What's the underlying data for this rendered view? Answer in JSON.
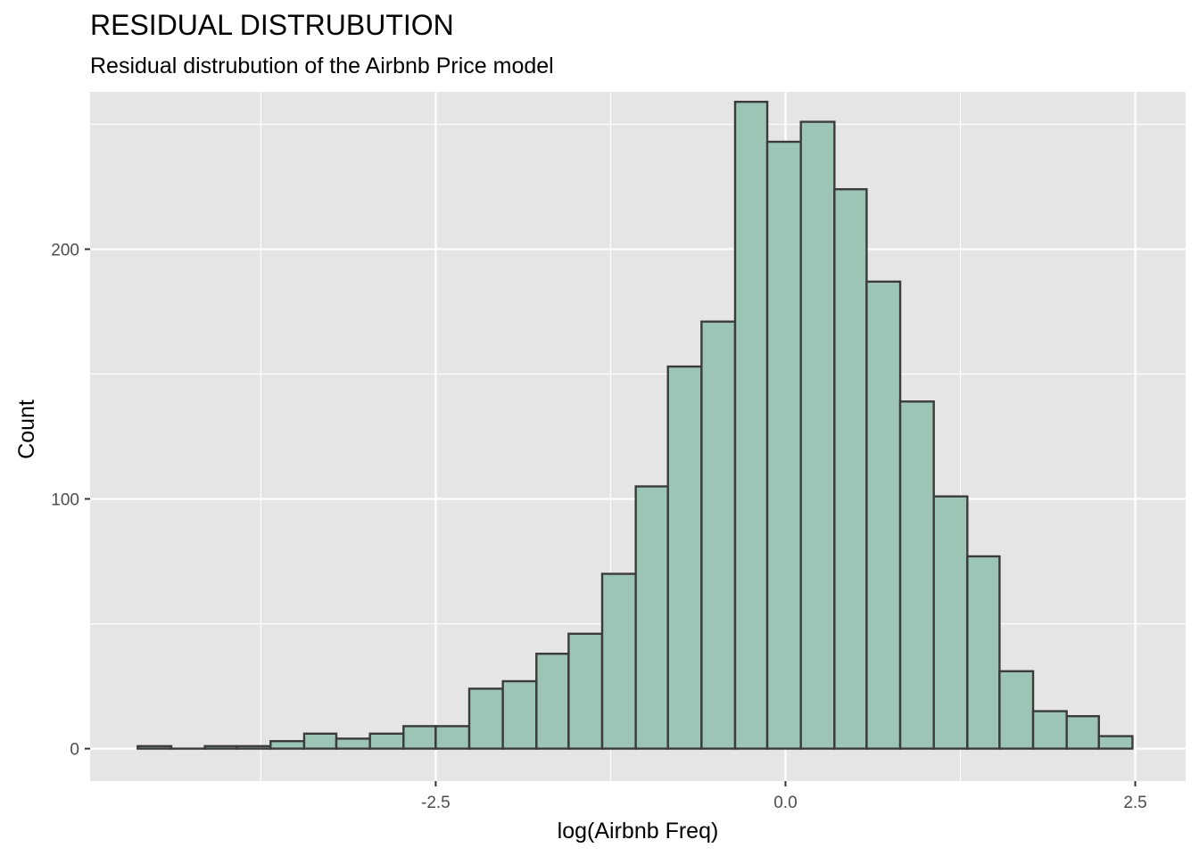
{
  "chart_data": {
    "type": "bar",
    "title": "RESIDUAL DISTRUBUTION",
    "subtitle": "Residual distrubution of the Airbnb Price model",
    "xlabel": "log(Airbnb Freq)",
    "ylabel": "Count",
    "xlim": [
      -4.97,
      2.86
    ],
    "ylim": [
      -13,
      263
    ],
    "x_ticks": [
      {
        "value": -2.5,
        "label": "-2.5"
      },
      {
        "value": 0.0,
        "label": "0.0"
      },
      {
        "value": 2.5,
        "label": "2.5"
      }
    ],
    "y_ticks": [
      {
        "value": 0,
        "label": "0"
      },
      {
        "value": 100,
        "label": "100"
      },
      {
        "value": 200,
        "label": "200"
      }
    ],
    "grid": true,
    "fill_color": "#9cc5b5",
    "edge_color": "#3b3b3b",
    "panel_color": "#e5e5e5",
    "bin_width": 0.2375,
    "bins": [
      {
        "x0": -4.63,
        "x1": -4.39,
        "count": 1
      },
      {
        "x0": -4.39,
        "x1": -4.15,
        "count": 0
      },
      {
        "x0": -4.15,
        "x1": -3.92,
        "count": 1
      },
      {
        "x0": -3.92,
        "x1": -3.68,
        "count": 1
      },
      {
        "x0": -3.68,
        "x1": -3.44,
        "count": 3
      },
      {
        "x0": -3.44,
        "x1": -3.21,
        "count": 6
      },
      {
        "x0": -3.21,
        "x1": -2.97,
        "count": 4
      },
      {
        "x0": -2.97,
        "x1": -2.73,
        "count": 6
      },
      {
        "x0": -2.73,
        "x1": -2.5,
        "count": 9
      },
      {
        "x0": -2.5,
        "x1": -2.26,
        "count": 9
      },
      {
        "x0": -2.26,
        "x1": -2.02,
        "count": 24
      },
      {
        "x0": -2.02,
        "x1": -1.78,
        "count": 27
      },
      {
        "x0": -1.78,
        "x1": -1.55,
        "count": 38
      },
      {
        "x0": -1.55,
        "x1": -1.31,
        "count": 46
      },
      {
        "x0": -1.31,
        "x1": -1.07,
        "count": 70
      },
      {
        "x0": -1.07,
        "x1": -0.84,
        "count": 105
      },
      {
        "x0": -0.84,
        "x1": -0.6,
        "count": 153
      },
      {
        "x0": -0.6,
        "x1": -0.36,
        "count": 171
      },
      {
        "x0": -0.36,
        "x1": -0.13,
        "count": 259
      },
      {
        "x0": -0.13,
        "x1": 0.11,
        "count": 243
      },
      {
        "x0": 0.11,
        "x1": 0.35,
        "count": 251
      },
      {
        "x0": 0.35,
        "x1": 0.58,
        "count": 224
      },
      {
        "x0": 0.58,
        "x1": 0.82,
        "count": 187
      },
      {
        "x0": 0.82,
        "x1": 1.06,
        "count": 139
      },
      {
        "x0": 1.06,
        "x1": 1.3,
        "count": 101
      },
      {
        "x0": 1.3,
        "x1": 1.53,
        "count": 77
      },
      {
        "x0": 1.53,
        "x1": 1.77,
        "count": 31
      },
      {
        "x0": 1.77,
        "x1": 2.01,
        "count": 15
      },
      {
        "x0": 2.01,
        "x1": 2.24,
        "count": 13
      },
      {
        "x0": 2.24,
        "x1": 2.48,
        "count": 5
      }
    ]
  }
}
